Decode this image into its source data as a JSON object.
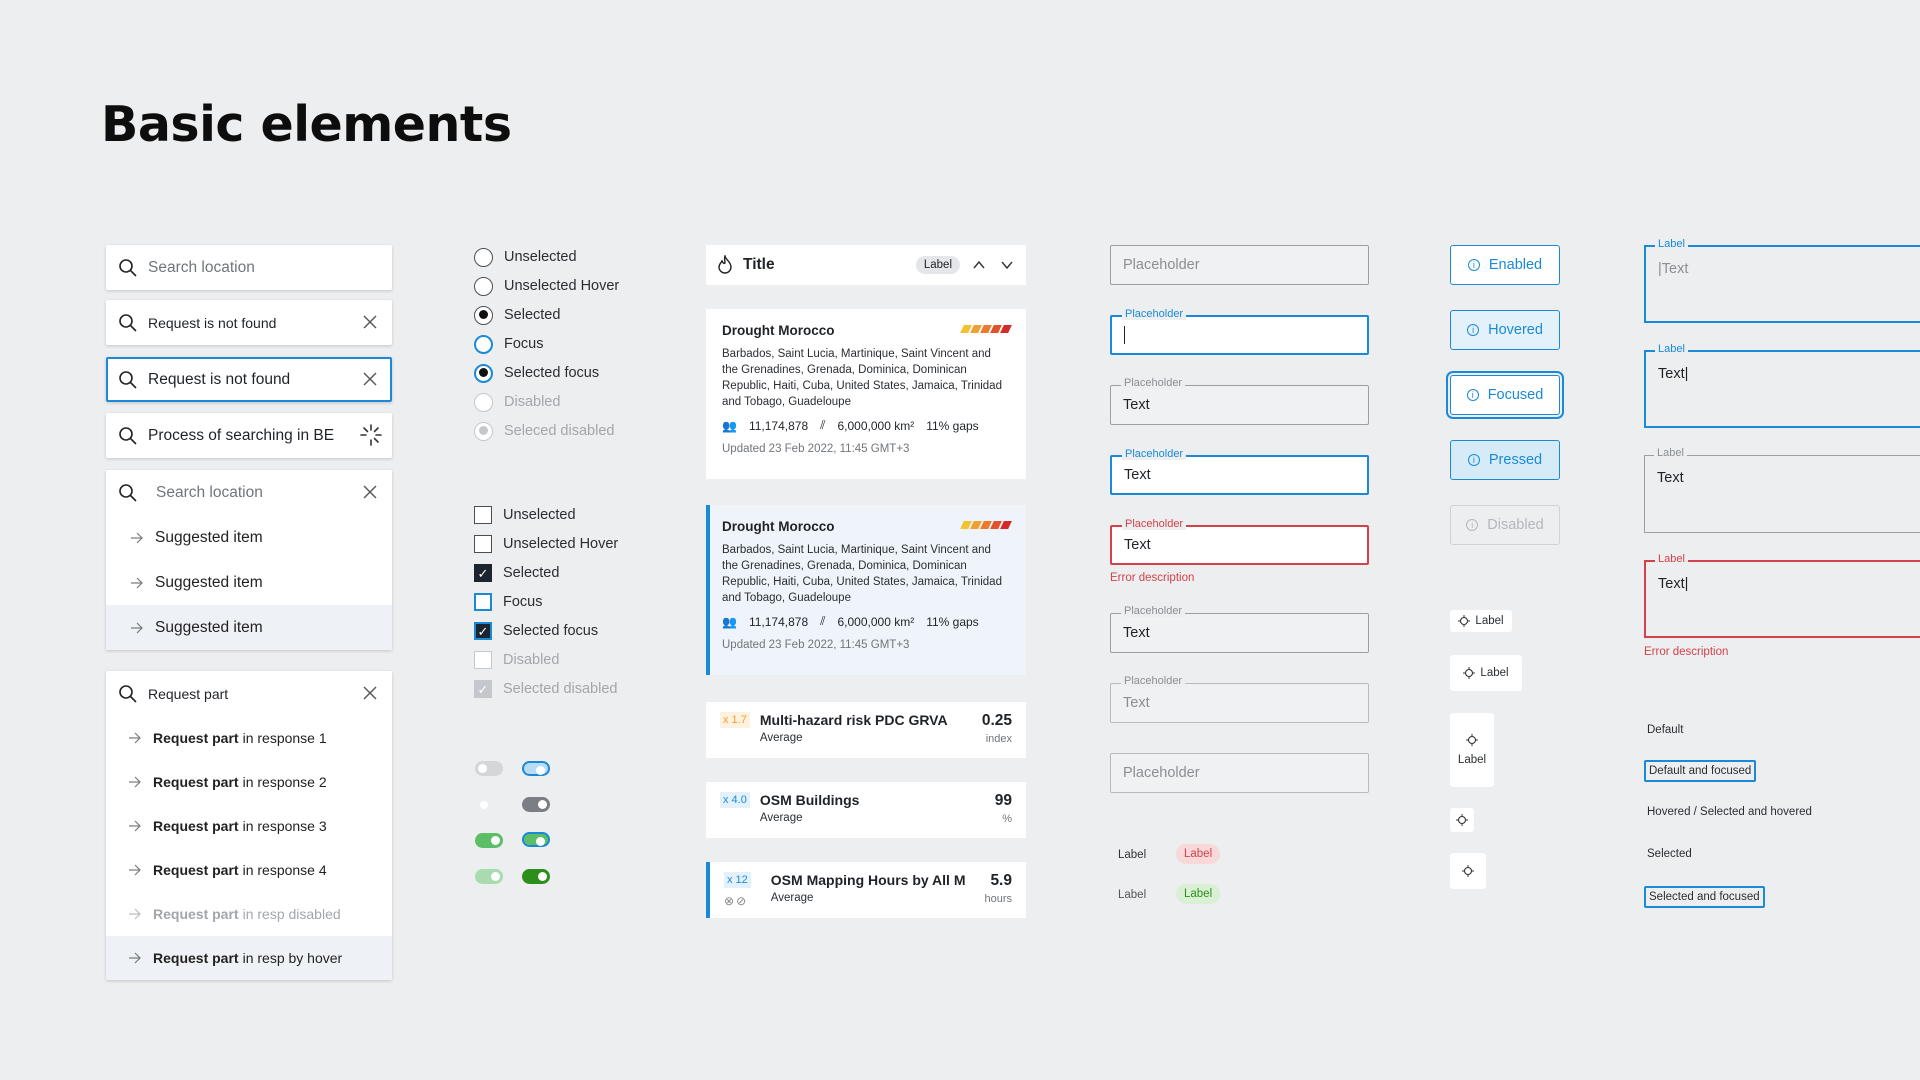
{
  "page": {
    "title": "Basic elements"
  },
  "search": {
    "placeholder": "Search location",
    "not_found": "Request is not found",
    "not_found_focused": "Request is not found",
    "processing": "Process of searching in BE",
    "dropdown_placeholder": "Search location",
    "suggestions": [
      "Suggested item",
      "Suggested item",
      "Suggested item"
    ],
    "request_query": "Request part",
    "results": [
      {
        "bold": "Request part",
        "rest": "in response 1"
      },
      {
        "bold": "Request part",
        "rest": " in response 2"
      },
      {
        "bold": "Request part",
        "rest": "in response 3"
      },
      {
        "bold": "Request part",
        "rest": "in response 4"
      },
      {
        "bold": "Request part",
        "rest": "in resp disabled"
      },
      {
        "bold": "Request part",
        "rest": "in resp by hover"
      }
    ]
  },
  "radios": [
    "Unselected",
    "Unselected Hover",
    "Selected",
    "Focus",
    "Selected focus",
    "Disabled",
    "Seleced disabled"
  ],
  "checkboxes": [
    "Unselected",
    "Unselected Hover",
    "Selected",
    "Focus",
    "Selected focus",
    "Disabled",
    "Selected disabled"
  ],
  "panel_header": {
    "title": "Title",
    "badge": "Label"
  },
  "drought_cards": [
    {
      "title": "Drought Morocco",
      "description": "Barbados, Saint Lucia, Martinique, Saint Vincent and the Grenadines, Grenada, Dominica, Dominican Republic, Haiti, Cuba, United States, Jamaica, Trinidad and Tobago, Guadeloupe",
      "population": "11,174,878",
      "area": "6,000,000 km²",
      "gaps": "11% gaps",
      "updated": "Updated 23 Feb 2022, 11:45 GMT+3"
    },
    {
      "title": "Drought Morocco",
      "description": "Barbados, Saint Lucia, Martinique, Saint Vincent and the Grenadines, Grenada, Dominica, Dominican Republic, Haiti, Cuba, United States, Jamaica, Trinidad and Tobago, Guadeloupe",
      "population": "11,174,878",
      "area": "6,000,000 km²",
      "gaps": "11% gaps",
      "updated": "Updated 23 Feb 2022, 11:45 GMT+3"
    }
  ],
  "severity_colors": [
    "#f2c230",
    "#f0a030",
    "#ec7a2a",
    "#e4502a",
    "#d62a2a"
  ],
  "metric_cards": [
    {
      "mult": "x 1.7",
      "name": "Multi-hazard risk PDC GRVA",
      "sub": "Average",
      "value": "0.25",
      "unit": "index"
    },
    {
      "mult": "x 4.0",
      "name": "OSM Buildings",
      "sub": "Average",
      "value": "99",
      "unit": "%"
    },
    {
      "mult": "x 12",
      "name": "OSM Mapping Hours by All M",
      "sub": "Average",
      "value": "5.9",
      "unit": "hours"
    }
  ],
  "inputs": {
    "placeholder": "Placeholder",
    "label": "Placeholder",
    "value": "Text",
    "error": "Error description"
  },
  "tags": {
    "label": "Label"
  },
  "buttons": [
    "Enabled",
    "Hovered",
    "Focused",
    "Pressed",
    "Disabled"
  ],
  "chips": {
    "label": "Label"
  },
  "textareas": {
    "label": "Label",
    "placeholder": "|Text",
    "value_cursor": "Text|",
    "value": "Text",
    "error": "Error description"
  },
  "states": [
    "Default",
    "Default and focused",
    "Hovered / Selected and hovered",
    "Selected",
    "Selected and focused"
  ],
  "colors": {
    "accent": "#1a8ad8",
    "error": "#d3424a",
    "success": "#4caf50"
  }
}
